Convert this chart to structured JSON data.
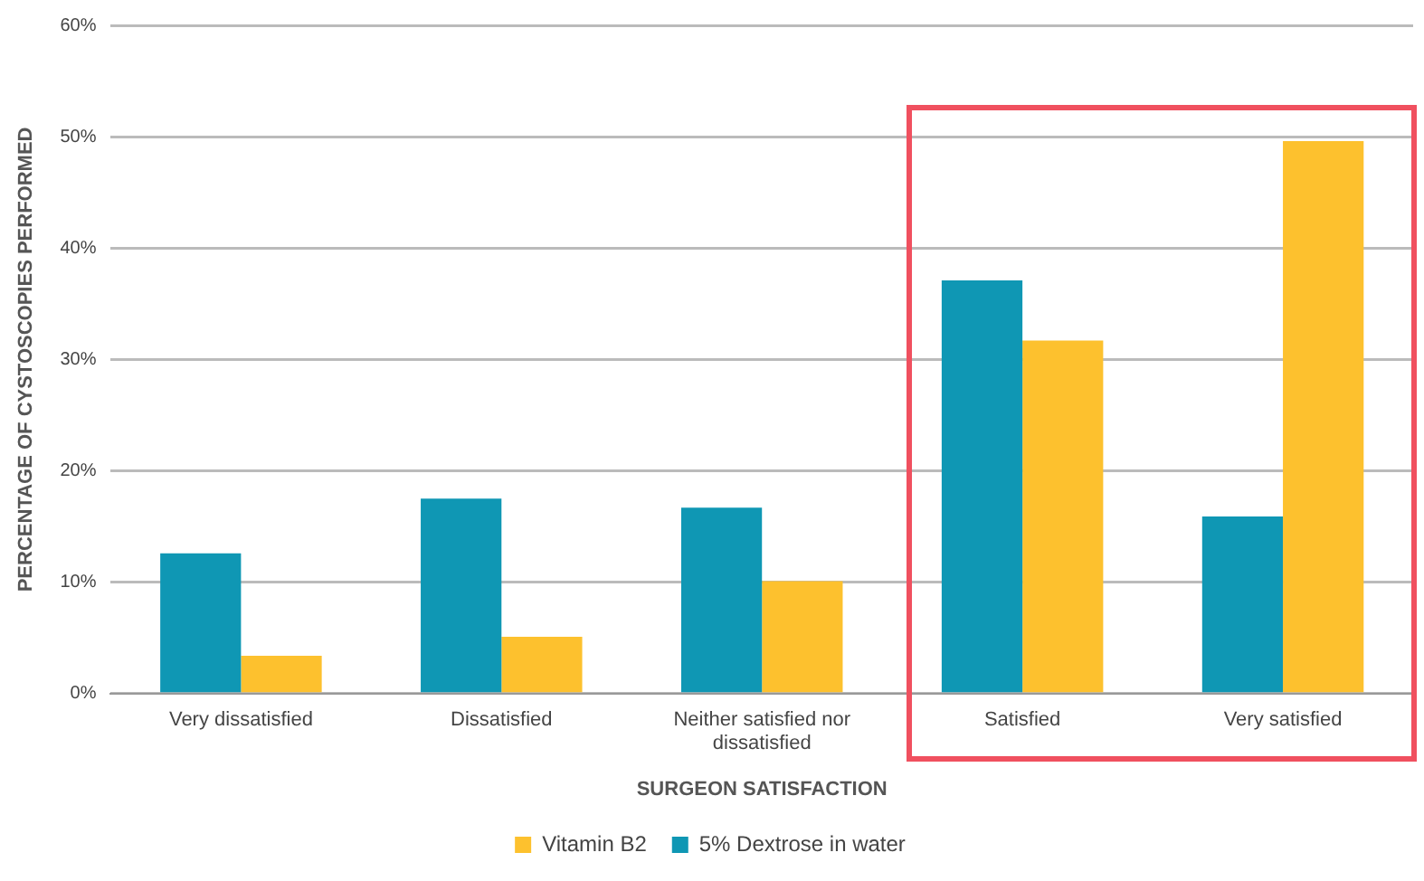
{
  "chart_data": {
    "type": "bar",
    "xlabel": "SURGEON SATISFACTION",
    "ylabel": "PERCENTAGE OF CYSTOSCOPIES PERFORMED",
    "categories": [
      "Very dissatisfied",
      "Dissatisfied",
      "Neither satisfied nor dissatisfied",
      "Satisfied",
      "Very satisfied"
    ],
    "series": [
      {
        "name": "5% Dextrose in water",
        "color": "#0f97b4",
        "values": [
          12.6,
          17.5,
          16.7,
          37.1,
          15.9
        ]
      },
      {
        "name": "Vitamin B2",
        "color": "#fdc12e",
        "values": [
          3.4,
          5.1,
          10.1,
          31.7,
          49.6
        ]
      }
    ],
    "ylim": [
      0,
      60
    ],
    "yticks": [
      {
        "value": 0,
        "label": "0%"
      },
      {
        "value": 10,
        "label": "10%"
      },
      {
        "value": 20,
        "label": "20%"
      },
      {
        "value": 30,
        "label": "30%"
      },
      {
        "value": 40,
        "label": "40%"
      },
      {
        "value": 50,
        "label": "50%"
      },
      {
        "value": 60,
        "label": "60%"
      }
    ],
    "grid": "y",
    "legend": "bottom"
  }
}
